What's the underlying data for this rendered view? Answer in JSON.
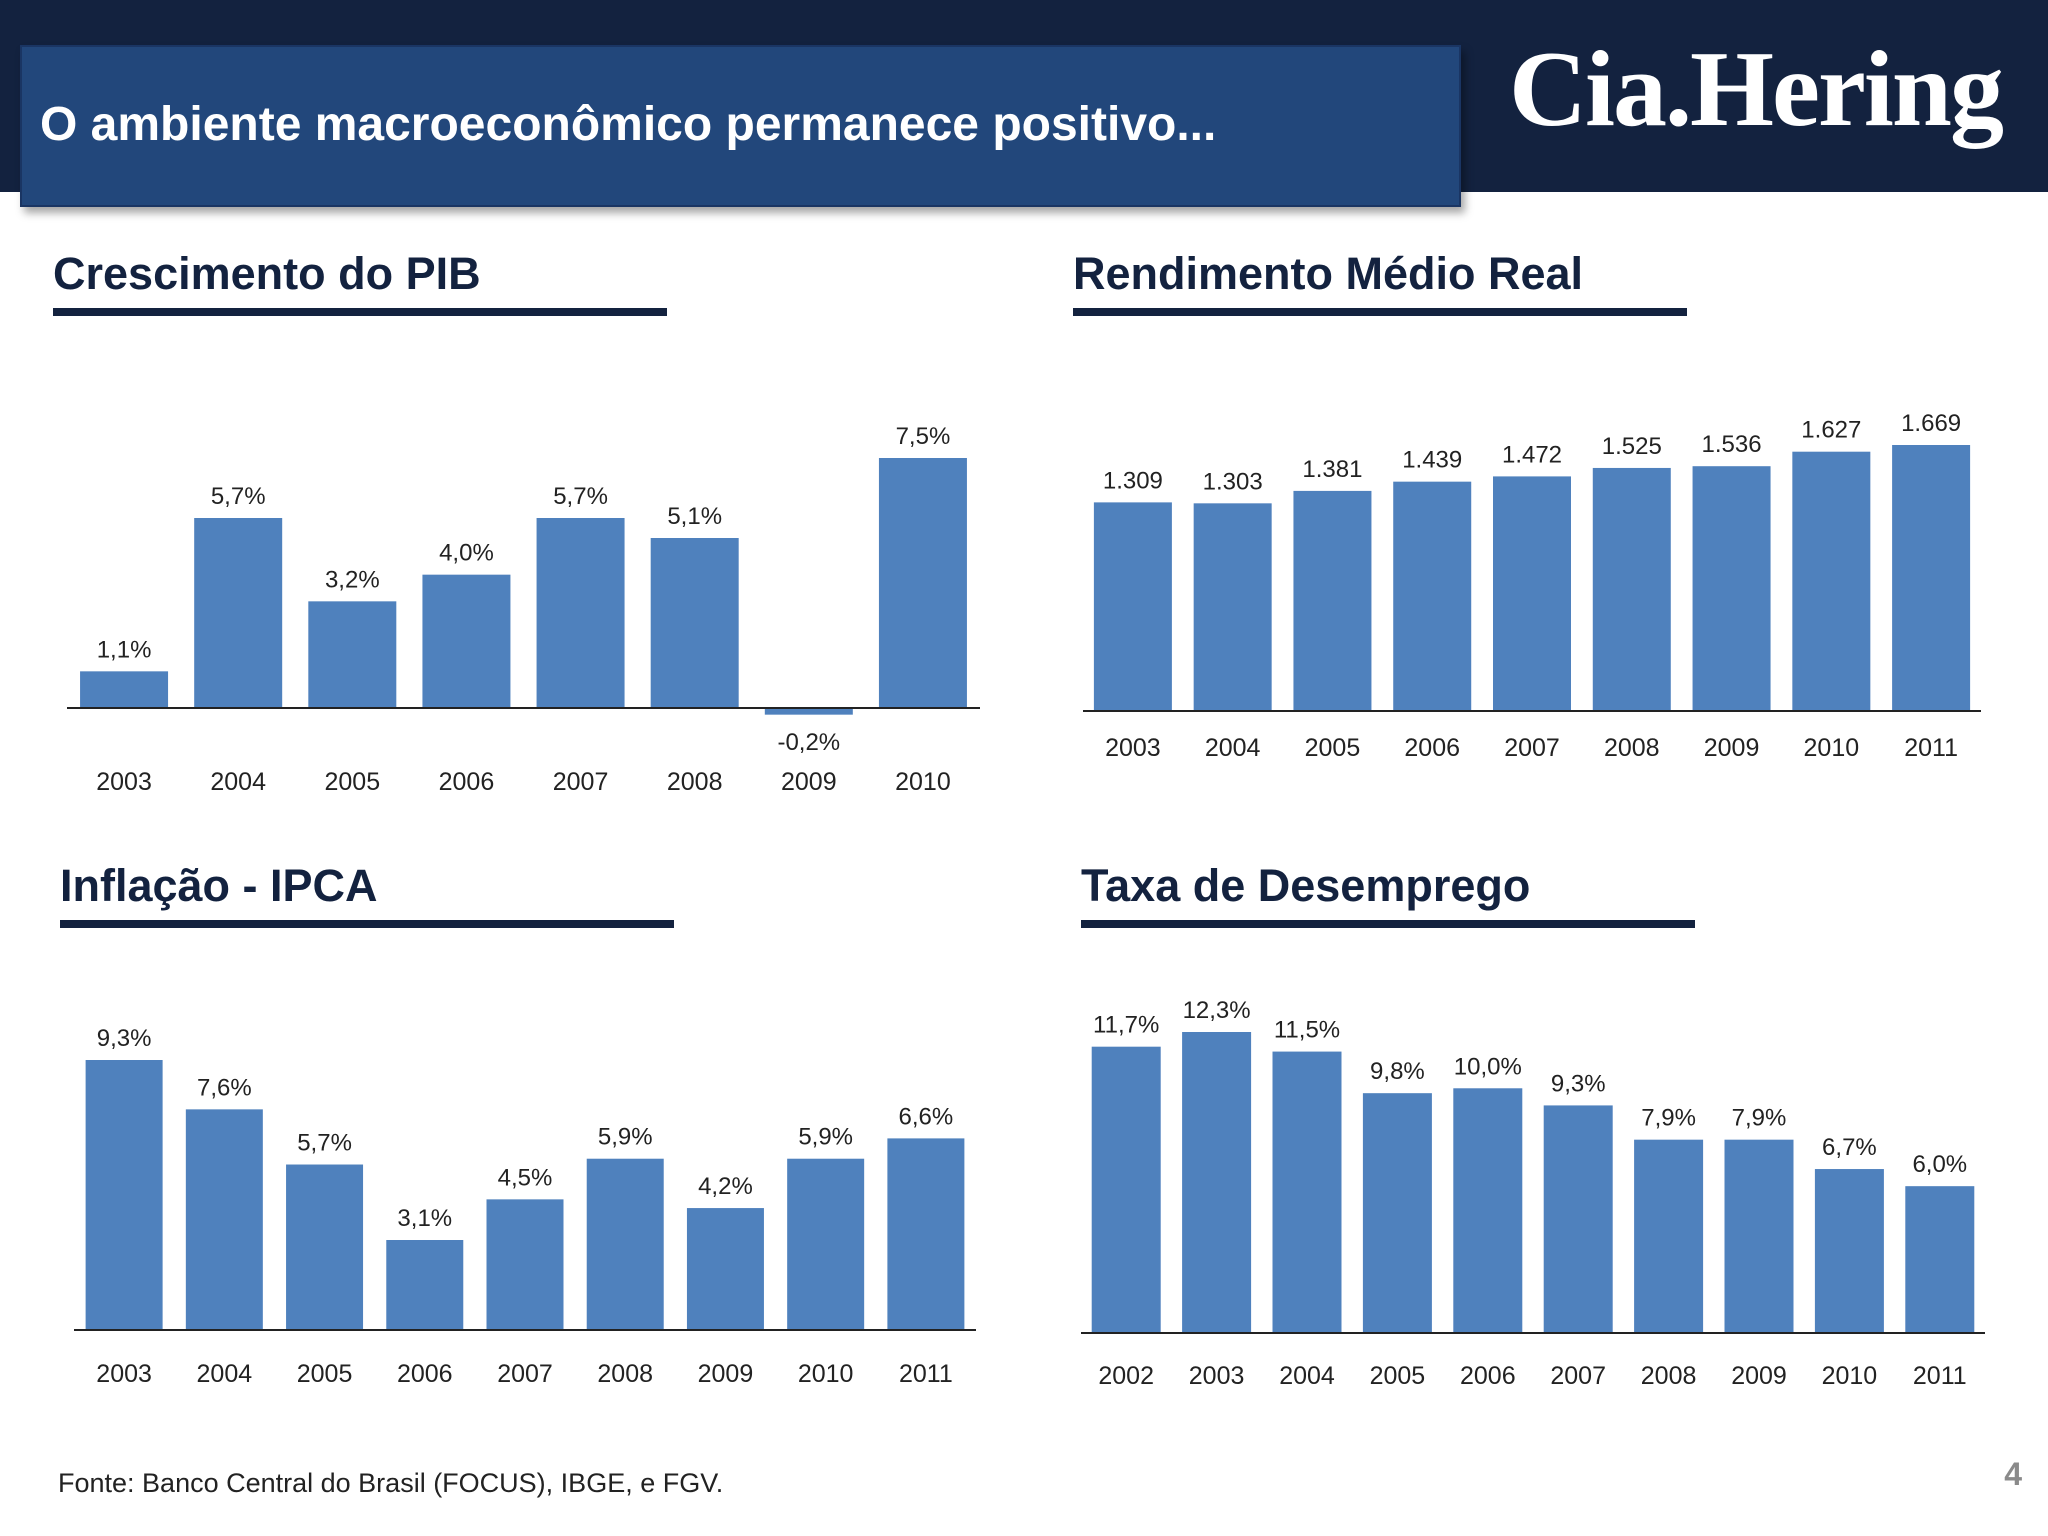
{
  "slide": {
    "title": "O ambiente macroeconômico permanece positivo...",
    "logo": "Cia.Hering",
    "footnote": "Fonte: Banco Central do Brasil (FOCUS), IBGE, e FGV.",
    "page_number": "4",
    "bar_color": "#4f81bd",
    "header_color": "#13223f",
    "title_box_color": "#22477b"
  },
  "chart_data": [
    {
      "id": "pib",
      "type": "bar",
      "title": "Crescimento do PIB",
      "categories": [
        "2003",
        "2004",
        "2005",
        "2006",
        "2007",
        "2008",
        "2009",
        "2010"
      ],
      "values": [
        1.1,
        5.7,
        3.2,
        4.0,
        5.7,
        5.1,
        -0.2,
        7.5
      ],
      "labels": [
        "1,1%",
        "5,7%",
        "3,2%",
        "4,0%",
        "5,7%",
        "5,1%",
        "-0,2%",
        "7,5%"
      ],
      "ylim": [
        -0.2,
        7.5
      ],
      "grid": false
    },
    {
      "id": "rendimento",
      "type": "bar",
      "title": "Rendimento Médio Real",
      "categories": [
        "2003",
        "2004",
        "2005",
        "2006",
        "2007",
        "2008",
        "2009",
        "2010",
        "2011"
      ],
      "values": [
        1309,
        1303,
        1381,
        1439,
        1472,
        1525,
        1536,
        1627,
        1669
      ],
      "labels": [
        "1.309",
        "1.303",
        "1.381",
        "1.439",
        "1.472",
        "1.525",
        "1.536",
        "1.627",
        "1.669"
      ],
      "ylim": [
        0,
        1669
      ],
      "grid": false
    },
    {
      "id": "ipca",
      "type": "bar",
      "title": "Inflação - IPCA",
      "categories": [
        "2003",
        "2004",
        "2005",
        "2006",
        "2007",
        "2008",
        "2009",
        "2010",
        "2011"
      ],
      "values": [
        9.3,
        7.6,
        5.7,
        3.1,
        4.5,
        5.9,
        4.2,
        5.9,
        6.6
      ],
      "labels": [
        "9,3%",
        "7,6%",
        "5,7%",
        "3,1%",
        "4,5%",
        "5,9%",
        "4,2%",
        "5,9%",
        "6,6%"
      ],
      "ylim": [
        0,
        9.3
      ],
      "grid": false
    },
    {
      "id": "desemprego",
      "type": "bar",
      "title": "Taxa de Desemprego",
      "categories": [
        "2002",
        "2003",
        "2004",
        "2005",
        "2006",
        "2007",
        "2008",
        "2009",
        "2010",
        "2011"
      ],
      "values": [
        11.7,
        12.3,
        11.5,
        9.8,
        10.0,
        9.3,
        7.9,
        7.9,
        6.7,
        6.0
      ],
      "labels": [
        "11,7%",
        "12,3%",
        "11,5%",
        "9,8%",
        "10,0%",
        "9,3%",
        "7,9%",
        "7,9%",
        "6,7%",
        "6,0%"
      ],
      "ylim": [
        0,
        12.3
      ],
      "grid": false
    }
  ]
}
